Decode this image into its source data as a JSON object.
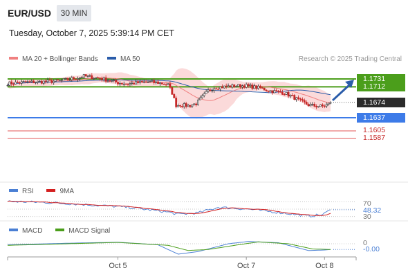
{
  "header": {
    "pair": "EUR/USD",
    "timeframe": "30 MIN",
    "datetime": "Tuesday, October 7, 2025 5:39:14 PM CET"
  },
  "legend": {
    "items": [
      {
        "label": "MA 20 + Bollinger Bands",
        "color": "#f08080"
      },
      {
        "label": "MA 50",
        "color": "#2a5caa"
      }
    ],
    "credit": "Research © 2025 Trading Central"
  },
  "chart_data": {
    "type": "candlestick",
    "price_range": [
      1.1573,
      1.1758
    ],
    "current_price": "1.1674",
    "levels": [
      {
        "label": "1.1731",
        "value": 1.1731,
        "kind": "resistance",
        "color": "#4b9e1b"
      },
      {
        "label": "1.1712",
        "value": 1.1712,
        "kind": "resistance",
        "color": "#4b9e1b"
      },
      {
        "label": "1.1637",
        "value": 1.1637,
        "kind": "pivot",
        "color": "#3d7be8"
      },
      {
        "label": "1.1605",
        "value": 1.1605,
        "kind": "support",
        "color": "#e35656"
      },
      {
        "label": "1.1587",
        "value": 1.1587,
        "kind": "support",
        "color": "#e35656"
      }
    ],
    "close_path": [
      [
        0,
        1.172
      ],
      [
        5,
        1.1722
      ],
      [
        10,
        1.1723
      ],
      [
        15,
        1.1724
      ],
      [
        20,
        1.1725
      ],
      [
        25,
        1.1726
      ],
      [
        30,
        1.173
      ],
      [
        35,
        1.1734
      ],
      [
        38,
        1.1738
      ],
      [
        42,
        1.1735
      ],
      [
        46,
        1.1733
      ],
      [
        50,
        1.1728
      ],
      [
        55,
        1.1722
      ],
      [
        60,
        1.1719
      ],
      [
        65,
        1.1722
      ],
      [
        70,
        1.1724
      ],
      [
        75,
        1.1722
      ],
      [
        80,
        1.1717
      ],
      [
        82,
        1.1697
      ],
      [
        84,
        1.1667
      ],
      [
        86,
        1.1668
      ],
      [
        90,
        1.1666
      ],
      [
        94,
        1.1671
      ],
      [
        96,
        1.1682
      ],
      [
        100,
        1.1702
      ],
      [
        103,
        1.171
      ],
      [
        108,
        1.1712
      ],
      [
        113,
        1.1714
      ],
      [
        118,
        1.1715
      ],
      [
        122,
        1.1712
      ],
      [
        126,
        1.1709
      ],
      [
        130,
        1.1703
      ],
      [
        134,
        1.17
      ],
      [
        138,
        1.1697
      ],
      [
        142,
        1.1688
      ],
      [
        146,
        1.1677
      ],
      [
        150,
        1.1668
      ],
      [
        154,
        1.1665
      ],
      [
        157,
        1.1665
      ],
      [
        160,
        1.167
      ],
      [
        161,
        1.1674
      ]
    ],
    "total_bars": 162,
    "forecast_target": 1.1731,
    "x_ticks": [
      {
        "label": "Oct 5",
        "bar": 55
      },
      {
        "label": "Oct 7",
        "bar": 119
      },
      {
        "label": "Oct 8",
        "bar": 158
      }
    ]
  },
  "rsi": {
    "legend": [
      {
        "label": "RSI",
        "color": "#4a7fd4"
      },
      {
        "label": "9MA",
        "color": "#d41f1f"
      }
    ],
    "range": [
      20,
      80
    ],
    "levels": [
      "70",
      "30"
    ],
    "current": "48.32"
  },
  "macd": {
    "legend": [
      {
        "label": "MACD",
        "color": "#4a7fd4"
      },
      {
        "label": "MACD Signal",
        "color": "#4b9e1b"
      }
    ],
    "zero_label": "0",
    "current": "-0.00"
  }
}
